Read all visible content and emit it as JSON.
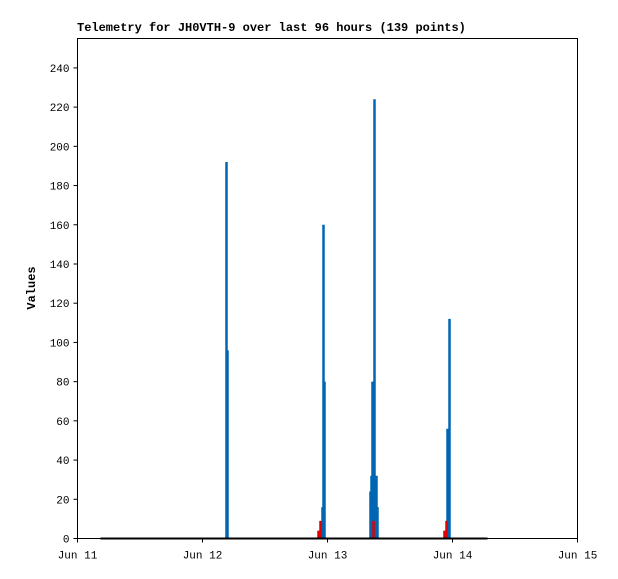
{
  "chart_data": {
    "type": "line",
    "title": "Telemetry for JH0VTH-9 over last 96 hours (139 points)",
    "y_label": "Values",
    "xlim": [
      11,
      15
    ],
    "xticks": [
      {
        "value": 11,
        "label": "Jun 11"
      },
      {
        "value": 12,
        "label": "Jun 12"
      },
      {
        "value": 13,
        "label": "Jun 13"
      },
      {
        "value": 14,
        "label": "Jun 14"
      },
      {
        "value": 15,
        "label": "Jun 15"
      }
    ],
    "ylim": [
      0,
      255
    ],
    "yticks": [
      0,
      20,
      40,
      60,
      80,
      100,
      120,
      140,
      160,
      180,
      200,
      220,
      240
    ],
    "series": [
      {
        "type": "impulse",
        "color": "#0066b3",
        "x": [
          12.192,
          12.2,
          12.96,
          12.968,
          12.976,
          13.344,
          13.352,
          13.36,
          13.376,
          13.392,
          13.4,
          13.96,
          13.976
        ],
        "values": [
          192,
          96,
          16,
          160,
          80,
          24,
          32,
          80,
          224,
          32,
          16,
          56,
          112
        ]
      },
      {
        "type": "impulse",
        "color": "#e00000",
        "x": [
          12.928,
          12.944,
          13.368,
          13.936,
          13.952
        ],
        "values": [
          4,
          9,
          9,
          4,
          9
        ]
      },
      {
        "type": "line",
        "color": "#000000",
        "x": [
          11.184,
          14.28
        ],
        "values": [
          0,
          0
        ]
      }
    ]
  }
}
